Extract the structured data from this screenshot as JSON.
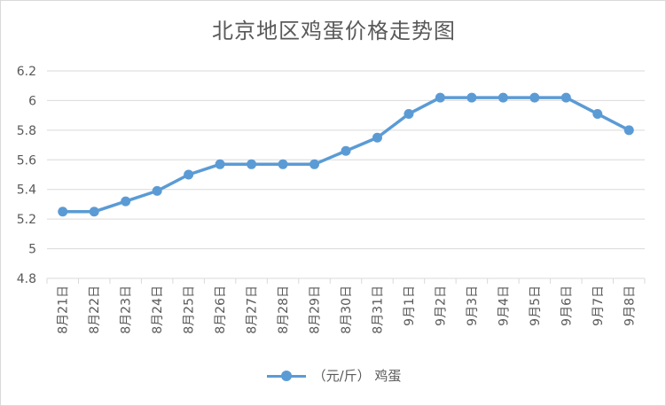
{
  "colors": {
    "series": "#5b9bd5",
    "grid": "#d9d9d9",
    "text": "#595959"
  },
  "chart_data": {
    "type": "line",
    "title": "北京地区鸡蛋价格走势图",
    "xlabel": "",
    "ylabel": "",
    "categories": [
      "8月21日",
      "8月22日",
      "8月23日",
      "8月24日",
      "8月25日",
      "8月26日",
      "8月27日",
      "8月28日",
      "8月29日",
      "8月30日",
      "8月31日",
      "9月1日",
      "9月2日",
      "9月3日",
      "9月4日",
      "9月5日",
      "9月6日",
      "9月7日",
      "9月8日"
    ],
    "series": [
      {
        "name": "（元/斤） 鸡蛋",
        "values": [
          5.25,
          5.25,
          5.32,
          5.39,
          5.5,
          5.57,
          5.57,
          5.57,
          5.57,
          5.66,
          5.75,
          5.91,
          6.02,
          6.02,
          6.02,
          6.02,
          6.02,
          5.91,
          5.8
        ]
      }
    ],
    "ylim": [
      4.8,
      6.2
    ],
    "yticks": [
      "4.8",
      "5",
      "5.2",
      "5.4",
      "5.6",
      "5.8",
      "6",
      "6.2"
    ],
    "grid": true,
    "legend": "bottom"
  }
}
